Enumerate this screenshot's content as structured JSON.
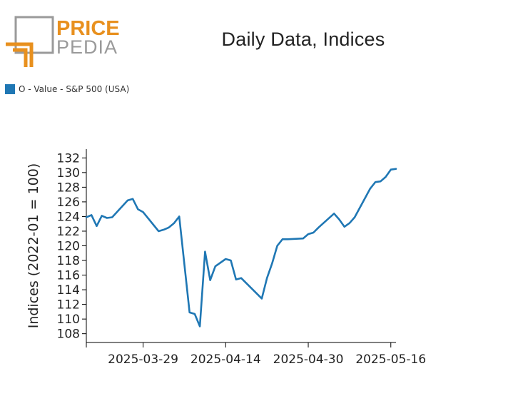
{
  "header": {
    "title": "Daily Data, Indices",
    "logo_line1": "PRICE",
    "logo_line2": "PEDIA",
    "logo_color_primary": "#e8901e",
    "logo_color_secondary": "#9a9a9a"
  },
  "legend": {
    "label": "O - Value - S&P 500 (USA)",
    "color": "#1f77b4"
  },
  "chart_data": {
    "type": "line",
    "title": "Daily Data, Indices",
    "xlabel": "",
    "ylabel": "Indices (2022-01 = 100)",
    "ylim": [
      106.8,
      133.2
    ],
    "yticks": [
      108,
      110,
      112,
      114,
      116,
      118,
      120,
      122,
      124,
      126,
      128,
      130,
      132
    ],
    "xlim": [
      "2025-03-18",
      "2025-05-17"
    ],
    "xticks": [
      "2025-03-29",
      "2025-04-14",
      "2025-04-30",
      "2025-05-16"
    ],
    "grid": false,
    "legend_position": "top-left",
    "series": [
      {
        "name": "O - Value - S&P 500 (USA)",
        "color": "#1f77b4",
        "x": [
          "2025-03-18",
          "2025-03-19",
          "2025-03-20",
          "2025-03-21",
          "2025-03-22",
          "2025-03-23",
          "2025-03-26",
          "2025-03-27",
          "2025-03-28",
          "2025-03-29",
          "2025-04-01",
          "2025-04-02",
          "2025-04-03",
          "2025-04-04",
          "2025-04-05",
          "2025-04-07",
          "2025-04-08",
          "2025-04-09",
          "2025-04-10",
          "2025-04-11",
          "2025-04-12",
          "2025-04-14",
          "2025-04-15",
          "2025-04-16",
          "2025-04-17",
          "2025-04-21",
          "2025-04-22",
          "2025-04-23",
          "2025-04-24",
          "2025-04-25",
          "2025-04-26",
          "2025-04-29",
          "2025-04-30",
          "2025-05-01",
          "2025-05-02",
          "2025-05-05",
          "2025-05-06",
          "2025-05-07",
          "2025-05-08",
          "2025-05-09",
          "2025-05-12",
          "2025-05-13",
          "2025-05-14",
          "2025-05-15",
          "2025-05-16",
          "2025-05-17"
        ],
        "y": [
          123.9,
          124.2,
          122.7,
          124.1,
          123.8,
          123.9,
          126.2,
          126.4,
          125.0,
          124.6,
          122.0,
          122.2,
          122.5,
          123.1,
          124.0,
          110.9,
          110.7,
          109.0,
          119.2,
          115.3,
          117.2,
          118.2,
          118.0,
          115.4,
          115.6,
          112.8,
          115.6,
          117.6,
          120.0,
          120.9,
          120.9,
          121.0,
          121.6,
          121.8,
          122.5,
          124.4,
          123.6,
          122.6,
          123.1,
          123.9,
          127.8,
          128.7,
          128.8,
          129.4,
          130.4,
          130.5
        ]
      }
    ]
  }
}
